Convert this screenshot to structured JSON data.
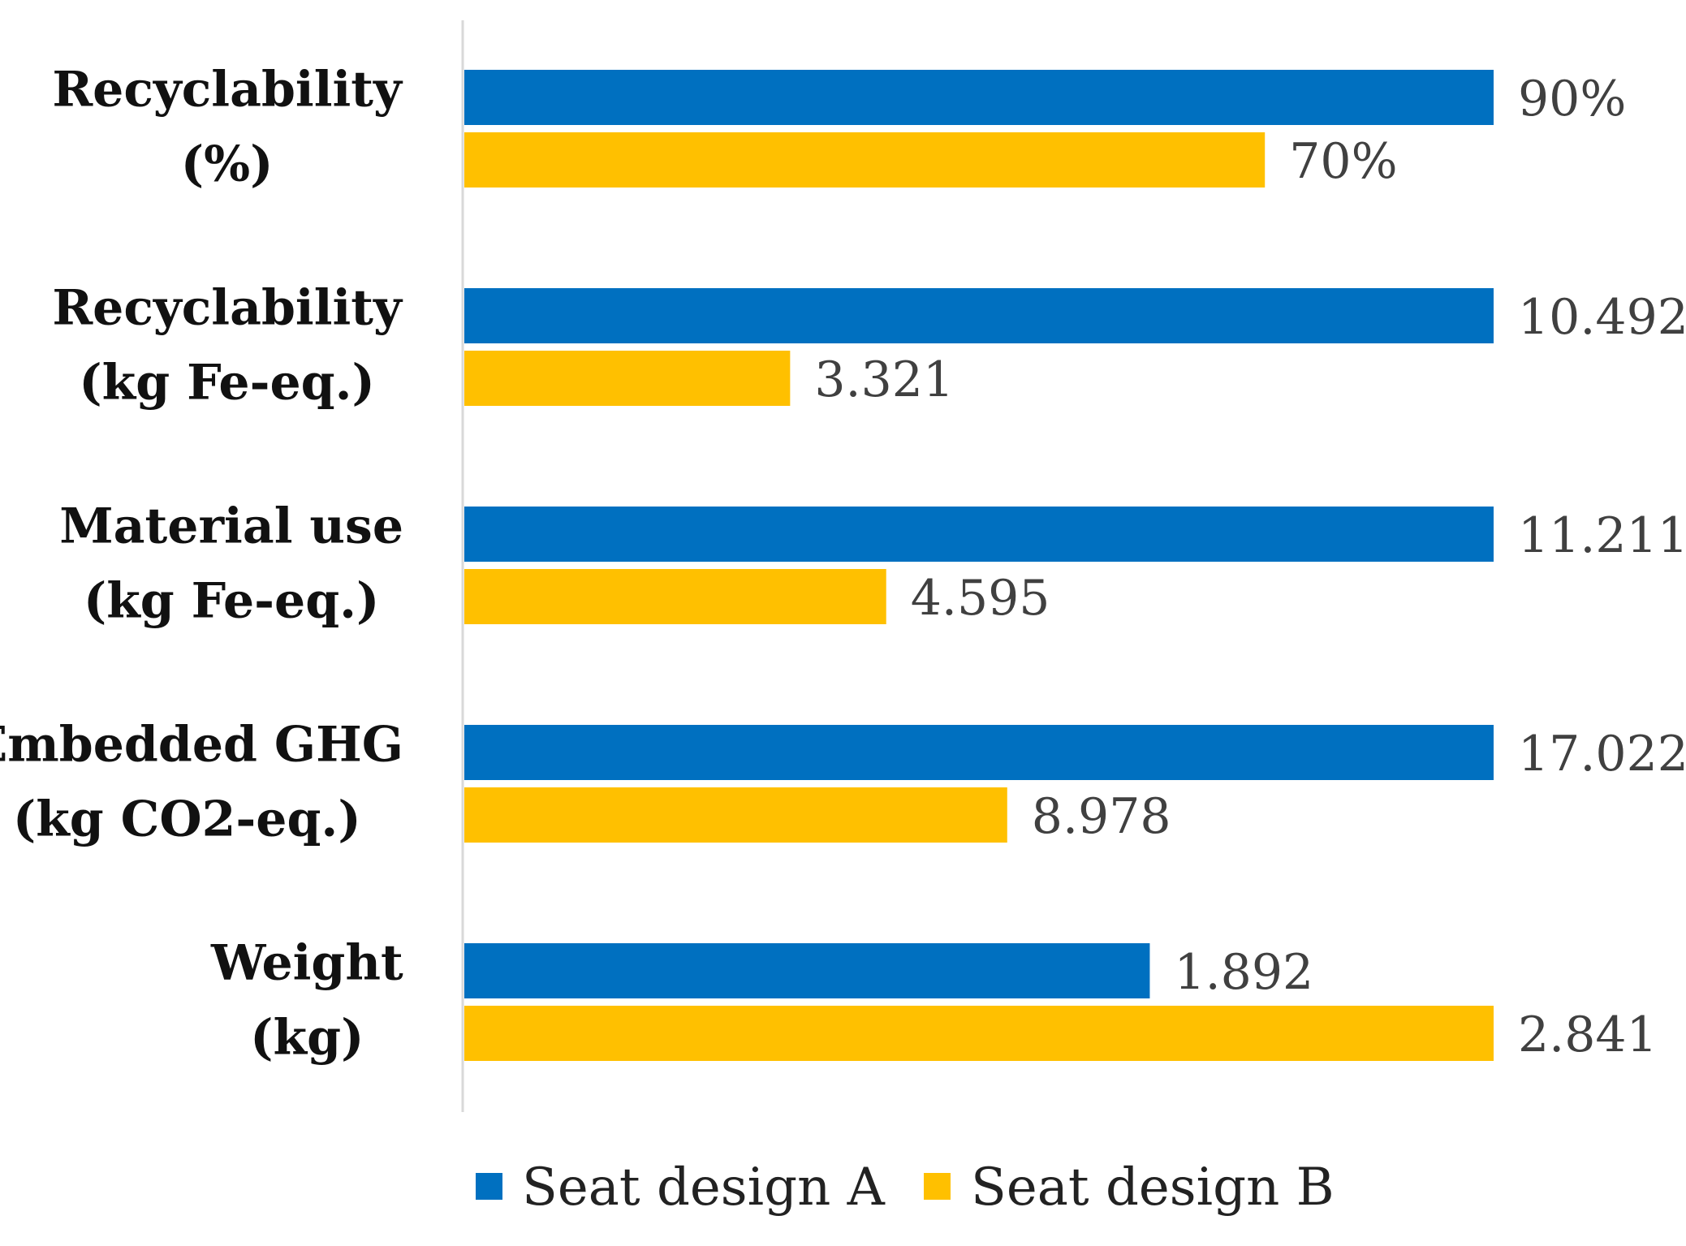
{
  "chart_data": {
    "type": "bar",
    "orientation": "horizontal",
    "title": "",
    "xlabel": "",
    "ylabel": "",
    "grid": false,
    "legend_position": "bottom-center",
    "colors": {
      "series_a": "#0070C0",
      "series_b": "#FFC000",
      "axis": "#d9d9d9"
    },
    "categories": [
      [
        "Recyclability",
        "(%)"
      ],
      [
        "Recyclability",
        "(kg Fe-eq.)"
      ],
      [
        "Material use",
        "(kg Fe-eq.)"
      ],
      [
        "Embedded GHG",
        "(kg CO2-eq.)"
      ],
      [
        "Weight",
        "(kg)"
      ]
    ],
    "series": [
      {
        "name": "Seat design A",
        "values": [
          90,
          10.492,
          11.211,
          17.022,
          1.892
        ],
        "labels": [
          "90%",
          "10.492",
          "11.211",
          "17.022",
          "1.892"
        ]
      },
      {
        "name": "Seat design B",
        "values": [
          70,
          3.321,
          4.595,
          8.978,
          2.841
        ],
        "labels": [
          "70%",
          "3.321",
          "4.595",
          "8.978",
          "2.841"
        ]
      }
    ],
    "scaling_note": "Each category scaled independently to its own maximum"
  }
}
